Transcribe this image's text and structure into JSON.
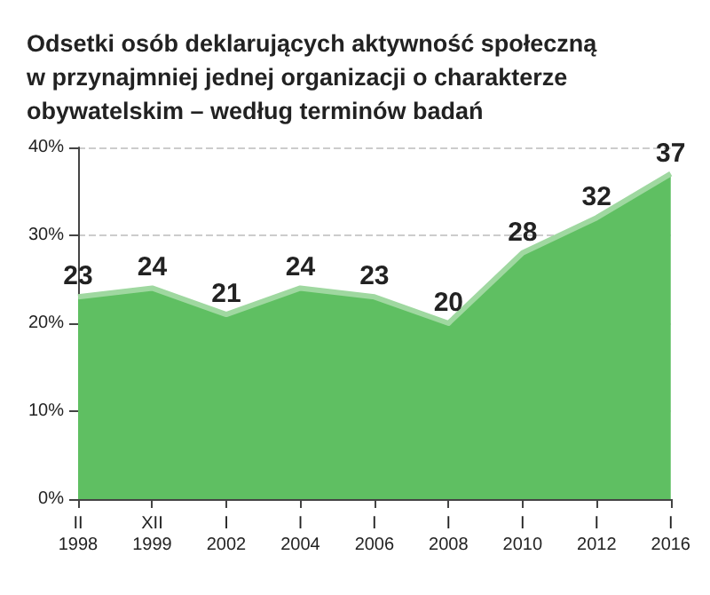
{
  "chart_data": {
    "type": "area",
    "title": "Odsetki osób deklarujących aktywność społeczną\nw przynajmniej jednej organizacji o charakterze\nobywatelskim – według terminów badań",
    "categories": [
      "II\n1998",
      "XII\n1999",
      "I\n2002",
      "I\n2004",
      "I\n2006",
      "I\n2008",
      "I\n2010",
      "I\n2012",
      "I\n2016"
    ],
    "series": [
      {
        "color": "#5fbf62",
        "values": [
          23,
          24,
          21,
          24,
          23,
          20,
          28,
          32,
          37
        ]
      }
    ],
    "ylim": [
      0,
      40
    ],
    "yticks": [
      {
        "value": 0,
        "label": "0%"
      },
      {
        "value": 10,
        "label": "10%"
      },
      {
        "value": 20,
        "label": "20%"
      },
      {
        "value": 30,
        "label": "30%"
      },
      {
        "value": 40,
        "label": "40%"
      }
    ],
    "grid": "y",
    "data_labels": true,
    "marker": "none",
    "line_style": "solid"
  }
}
